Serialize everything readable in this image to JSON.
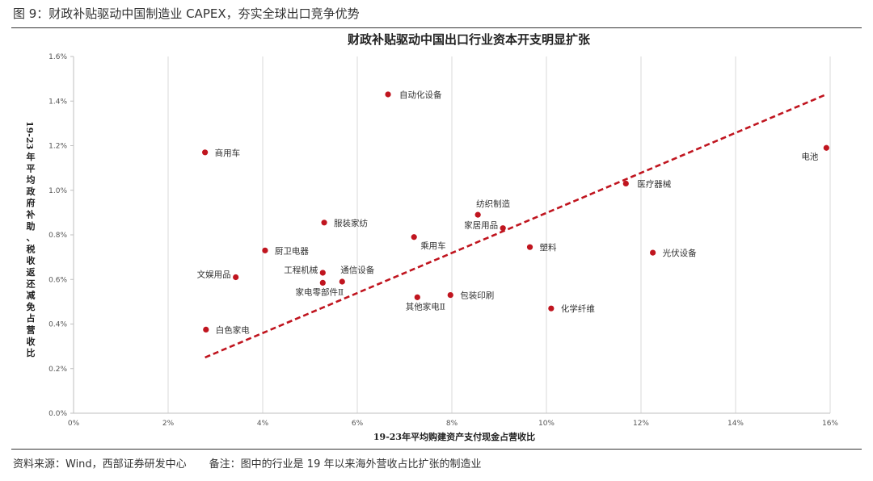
{
  "figure": {
    "header": "图 9：财政补贴驱动中国制造业 CAPEX，夯实全球出口竞争优势",
    "source": "资料来源：Wind，西部证券研发中心",
    "note": "备注：图中的行业是 19 年以来海外营收占比扩张的制造业"
  },
  "colors": {
    "marker": "#c0151f",
    "trendline": "#c0151f",
    "grid": "#d9d9d9",
    "axis": "#bfbfbf"
  },
  "chart_data": {
    "type": "scatter",
    "title": "财政补贴驱动中国出口行业资本开支明显扩张",
    "xlabel": "19-23年平均购建资产支付现金占营收比",
    "ylabel": "19-23年平均政府补助、税收返还减免占营收比",
    "xlim": [
      0,
      16
    ],
    "ylim": [
      0,
      1.6
    ],
    "x_unit": "%",
    "y_unit": "%",
    "x_ticks": [
      "0%",
      "2%",
      "4%",
      "6%",
      "8%",
      "10%",
      "12%",
      "14%",
      "16%"
    ],
    "y_ticks": [
      "0.0%",
      "0.2%",
      "0.4%",
      "0.6%",
      "0.8%",
      "1.0%",
      "1.2%",
      "1.4%",
      "1.6%"
    ],
    "grid": "vertical",
    "points": [
      {
        "label": "自动化设备",
        "x": 6.65,
        "y": 1.43
      },
      {
        "label": "商用车",
        "x": 2.78,
        "y": 1.17
      },
      {
        "label": "电池",
        "x": 15.92,
        "y": 1.19
      },
      {
        "label": "医疗器械",
        "x": 11.68,
        "y": 1.03
      },
      {
        "label": "纺织制造",
        "x": 8.55,
        "y": 0.89
      },
      {
        "label": "服装家纺",
        "x": 5.3,
        "y": 0.855
      },
      {
        "label": "家居用品",
        "x": 9.08,
        "y": 0.83
      },
      {
        "label": "乘用车",
        "x": 7.2,
        "y": 0.79
      },
      {
        "label": "塑料",
        "x": 9.65,
        "y": 0.745
      },
      {
        "label": "厨卫电器",
        "x": 4.05,
        "y": 0.73
      },
      {
        "label": "光伏设备",
        "x": 12.25,
        "y": 0.72
      },
      {
        "label": "工程机械",
        "x": 5.27,
        "y": 0.63
      },
      {
        "label": "通信设备",
        "x": 5.68,
        "y": 0.59
      },
      {
        "label": "文娱用品",
        "x": 3.43,
        "y": 0.61
      },
      {
        "label": "家电零部件Ⅱ",
        "x": 5.27,
        "y": 0.585
      },
      {
        "label": "包装印刷",
        "x": 7.97,
        "y": 0.53
      },
      {
        "label": "其他家电Ⅱ",
        "x": 7.27,
        "y": 0.52
      },
      {
        "label": "化学纤维",
        "x": 10.1,
        "y": 0.47
      },
      {
        "label": "白色家电",
        "x": 2.8,
        "y": 0.375
      }
    ],
    "trendline": {
      "style": "dashed",
      "from": [
        2.78,
        0.25
      ],
      "to": [
        15.92,
        1.43
      ]
    }
  }
}
